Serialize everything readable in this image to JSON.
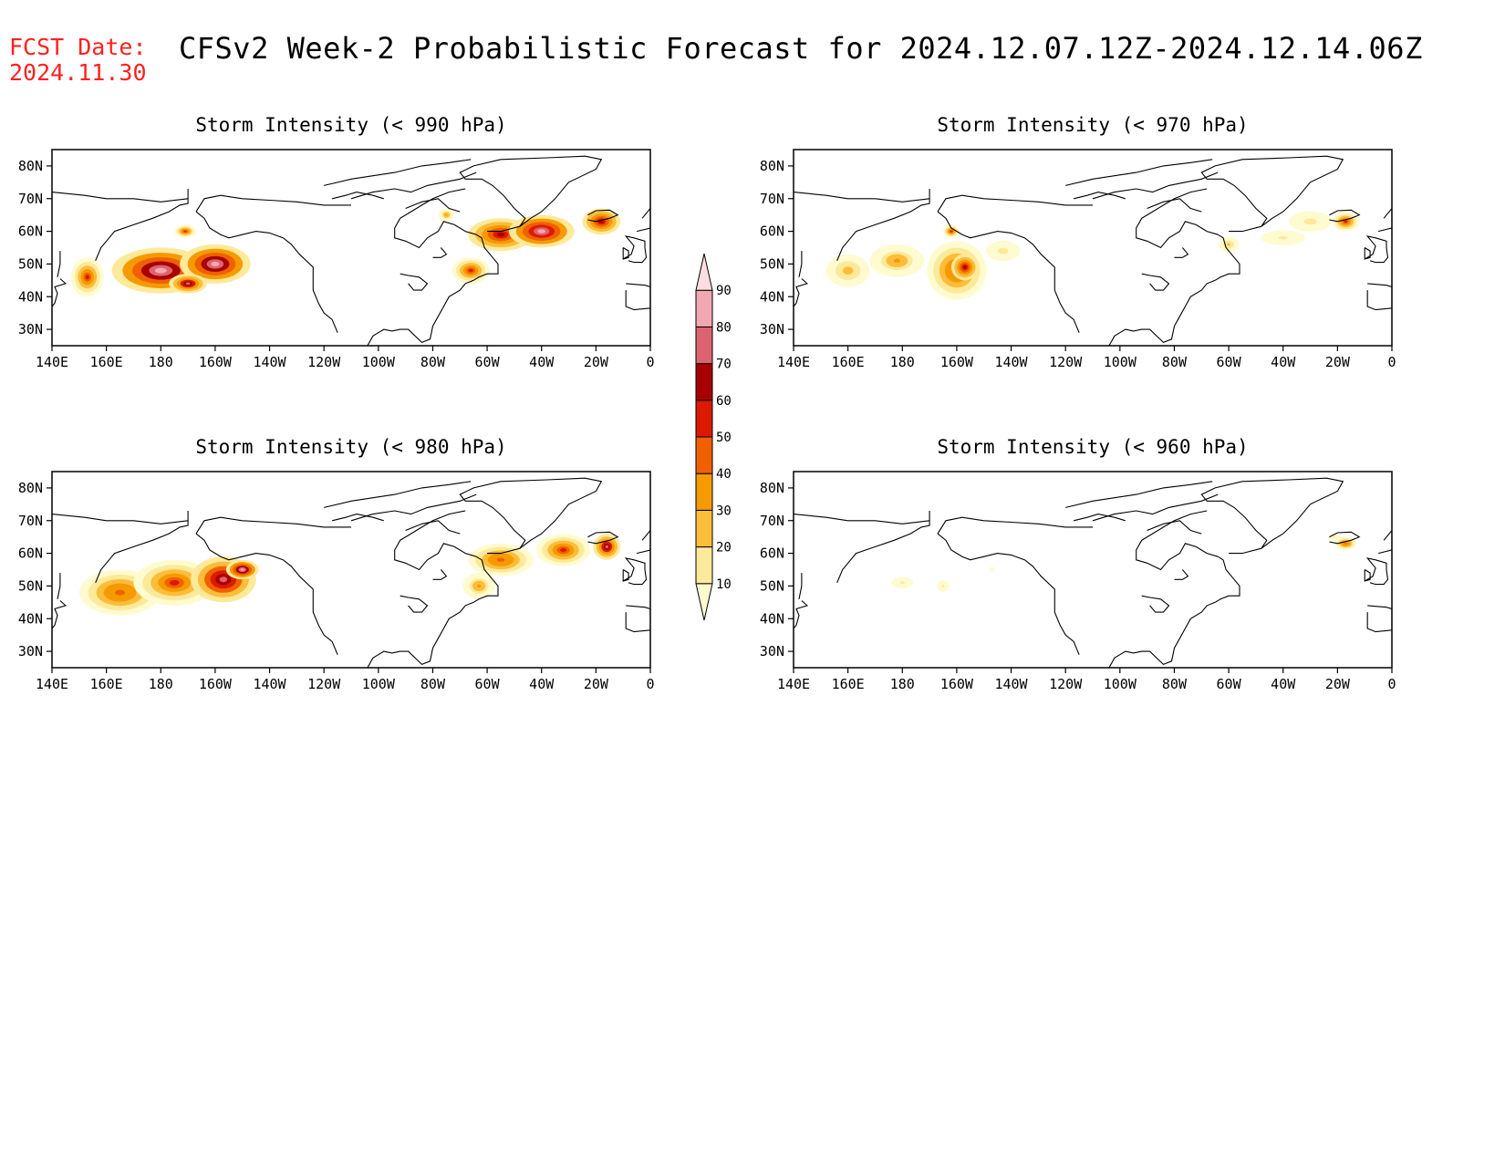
{
  "header": {
    "fcst_label": "FCST Date:",
    "fcst_date": "2024.11.30",
    "title": "CFSv2 Week-2 Probabilistic Forecast for 2024.12.07.12Z-2024.12.14.06Z"
  },
  "colors": {
    "text_red": "#ff2020",
    "coast": "#000000"
  },
  "colorbar": {
    "levels": [
      10,
      20,
      30,
      40,
      50,
      60,
      70,
      80,
      90
    ],
    "labels": [
      "10",
      "20",
      "30",
      "40",
      "50",
      "60",
      "70",
      "80",
      "90"
    ],
    "colors": [
      "#fffbd0",
      "#fde99a",
      "#fbbd3a",
      "#f59a00",
      "#f06000",
      "#dc1a00",
      "#a80000",
      "#dc6470",
      "#f2a8b0",
      "#fcdde0"
    ]
  },
  "chart_data": [
    {
      "type": "heatmap",
      "title": "Storm Intensity (< 990 hPa)",
      "xlim": [
        140,
        360
      ],
      "ylim": [
        25,
        85
      ],
      "xticks": [
        "140E",
        "160E",
        "180",
        "160W",
        "140W",
        "120W",
        "100W",
        "80W",
        "60W",
        "40W",
        "20W",
        "0"
      ],
      "yticks": [
        "30N",
        "40N",
        "50N",
        "60N",
        "70N",
        "80N"
      ],
      "blobs": [
        {
          "lon": 153,
          "lat": 46,
          "rlon": 6,
          "rlat": 6,
          "val": 60
        },
        {
          "lon": 180,
          "lat": 48,
          "rlon": 18,
          "rlat": 7,
          "val": 95
        },
        {
          "lon": 200,
          "lat": 50,
          "rlon": 13,
          "rlat": 6,
          "val": 95
        },
        {
          "lon": 190,
          "lat": 44,
          "rlon": 7,
          "rlat": 3,
          "val": 80
        },
        {
          "lon": 189,
          "lat": 60,
          "rlon": 4,
          "rlat": 2,
          "val": 60
        },
        {
          "lon": 294,
          "lat": 48,
          "rlon": 7,
          "rlat": 4,
          "val": 60
        },
        {
          "lon": 305,
          "lat": 59,
          "rlon": 12,
          "rlat": 5,
          "val": 70
        },
        {
          "lon": 320,
          "lat": 60,
          "rlon": 12,
          "rlat": 5,
          "val": 90
        },
        {
          "lon": 342,
          "lat": 63,
          "rlon": 7,
          "rlat": 4,
          "val": 75
        },
        {
          "lon": 285,
          "lat": 65,
          "rlon": 3,
          "rlat": 2,
          "val": 40
        }
      ]
    },
    {
      "type": "heatmap",
      "title": "Storm Intensity (< 970 hPa)",
      "xlim": [
        140,
        360
      ],
      "ylim": [
        25,
        85
      ],
      "xticks": [
        "140E",
        "160E",
        "180",
        "160W",
        "140W",
        "120W",
        "100W",
        "80W",
        "60W",
        "40W",
        "20W",
        "0"
      ],
      "yticks": [
        "30N",
        "40N",
        "50N",
        "60N",
        "70N",
        "80N"
      ],
      "blobs": [
        {
          "lon": 160,
          "lat": 48,
          "rlon": 8,
          "rlat": 5,
          "val": 35
        },
        {
          "lon": 178,
          "lat": 51,
          "rlon": 10,
          "rlat": 5,
          "val": 40
        },
        {
          "lon": 200,
          "lat": 48,
          "rlon": 11,
          "rlat": 9,
          "val": 55
        },
        {
          "lon": 203,
          "lat": 49,
          "rlon": 5,
          "rlat": 4,
          "val": 75
        },
        {
          "lon": 198,
          "lat": 60,
          "rlon": 3,
          "rlat": 2,
          "val": 60
        },
        {
          "lon": 217,
          "lat": 54,
          "rlon": 8,
          "rlat": 4,
          "val": 25
        },
        {
          "lon": 300,
          "lat": 56,
          "rlon": 5,
          "rlat": 3,
          "val": 30
        },
        {
          "lon": 320,
          "lat": 58,
          "rlon": 14,
          "rlat": 4,
          "val": 20
        },
        {
          "lon": 343,
          "lat": 63,
          "rlon": 5,
          "rlat": 3,
          "val": 65
        },
        {
          "lon": 330,
          "lat": 63,
          "rlon": 10,
          "rlat": 4,
          "val": 25
        }
      ]
    },
    {
      "type": "heatmap",
      "title": "Storm Intensity (< 980 hPa)",
      "xlim": [
        140,
        360
      ],
      "ylim": [
        25,
        85
      ],
      "xticks": [
        "140E",
        "160E",
        "180",
        "160W",
        "140W",
        "120W",
        "100W",
        "80W",
        "60W",
        "40W",
        "20W",
        "0"
      ],
      "yticks": [
        "30N",
        "40N",
        "50N",
        "60N",
        "70N",
        "80N"
      ],
      "blobs": [
        {
          "lon": 165,
          "lat": 48,
          "rlon": 15,
          "rlat": 7,
          "val": 55
        },
        {
          "lon": 185,
          "lat": 51,
          "rlon": 15,
          "rlat": 7,
          "val": 60
        },
        {
          "lon": 203,
          "lat": 52,
          "rlon": 12,
          "rlat": 7,
          "val": 85
        },
        {
          "lon": 210,
          "lat": 55,
          "rlon": 6,
          "rlat": 3,
          "val": 95
        },
        {
          "lon": 305,
          "lat": 58,
          "rlon": 12,
          "rlat": 5,
          "val": 55
        },
        {
          "lon": 328,
          "lat": 61,
          "rlon": 10,
          "rlat": 5,
          "val": 65
        },
        {
          "lon": 344,
          "lat": 62,
          "rlon": 5,
          "rlat": 4,
          "val": 80
        },
        {
          "lon": 297,
          "lat": 50,
          "rlon": 6,
          "rlat": 4,
          "val": 40
        }
      ]
    },
    {
      "type": "heatmap",
      "title": "Storm Intensity (< 960 hPa)",
      "xlim": [
        140,
        360
      ],
      "ylim": [
        25,
        85
      ],
      "xticks": [
        "140E",
        "160E",
        "180",
        "160W",
        "140W",
        "120W",
        "100W",
        "80W",
        "60W",
        "40W",
        "20W",
        "0"
      ],
      "yticks": [
        "30N",
        "40N",
        "50N",
        "60N",
        "70N",
        "80N"
      ],
      "blobs": [
        {
          "lon": 180,
          "lat": 51,
          "rlon": 7,
          "rlat": 3,
          "val": 20
        },
        {
          "lon": 195,
          "lat": 50,
          "rlon": 4,
          "rlat": 3,
          "val": 20
        },
        {
          "lon": 213,
          "lat": 55,
          "rlon": 2,
          "rlat": 2,
          "val": 15
        },
        {
          "lon": 343,
          "lat": 63,
          "rlon": 4,
          "rlat": 2,
          "val": 55
        },
        {
          "lon": 339,
          "lat": 65,
          "rlon": 4,
          "rlat": 2,
          "val": 20
        }
      ]
    }
  ]
}
